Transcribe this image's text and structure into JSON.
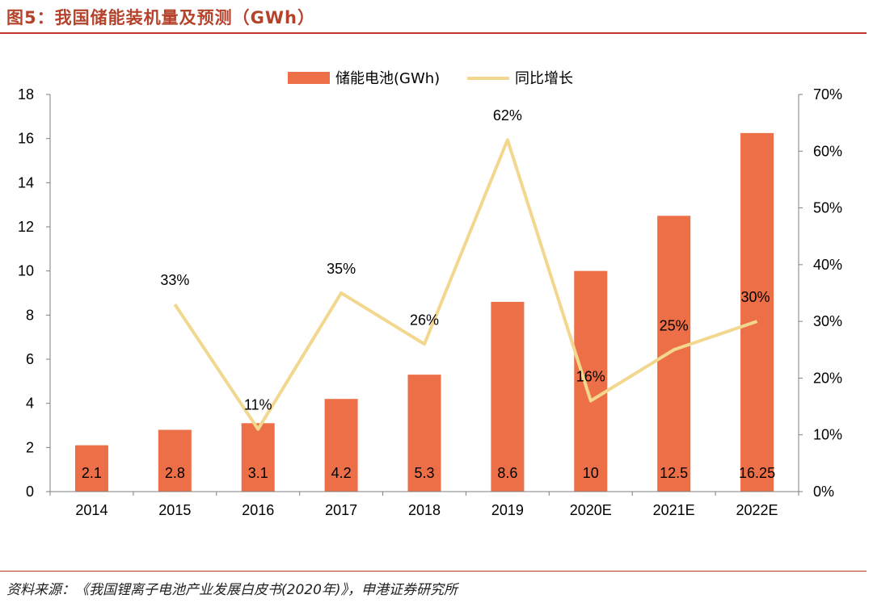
{
  "title": "图5：我国储能装机量及预测（GWh）",
  "source": "资料来源：《我国锂离子电池产业发展白皮书(2020年)》，申港证券研究所",
  "colors": {
    "bar": "#ed6f47",
    "line": "#f2d78e",
    "accent": "#c0392b",
    "axis": "#7f7f7f"
  },
  "chart_data": {
    "type": "bar",
    "categories": [
      "2014",
      "2015",
      "2016",
      "2017",
      "2018",
      "2019",
      "2020E",
      "2021E",
      "2022E"
    ],
    "series": [
      {
        "name": "储能电池(GWh)",
        "type": "bar",
        "axis": "left",
        "values": [
          2.1,
          2.8,
          3.1,
          4.2,
          5.3,
          8.6,
          10,
          12.5,
          16.25
        ],
        "labels": [
          "2.1",
          "2.8",
          "3.1",
          "4.2",
          "5.3",
          "8.6",
          "10",
          "12.5",
          "16.25"
        ]
      },
      {
        "name": "同比增长",
        "type": "line",
        "axis": "right",
        "values": [
          null,
          33,
          11,
          35,
          26,
          62,
          16,
          25,
          30
        ],
        "labels": [
          "",
          "33%",
          "11%",
          "35%",
          "26%",
          "62%",
          "16%",
          "25%",
          "30%"
        ]
      }
    ],
    "ylim_left": [
      0,
      18
    ],
    "yticks_left": [
      "0",
      "2",
      "4",
      "6",
      "8",
      "10",
      "12",
      "14",
      "16",
      "18"
    ],
    "ylim_right": [
      0,
      70
    ],
    "yticks_right": [
      "0%",
      "10%",
      "20%",
      "30%",
      "40%",
      "50%",
      "60%",
      "70%"
    ],
    "legend_position": "top-center",
    "grid": false
  }
}
